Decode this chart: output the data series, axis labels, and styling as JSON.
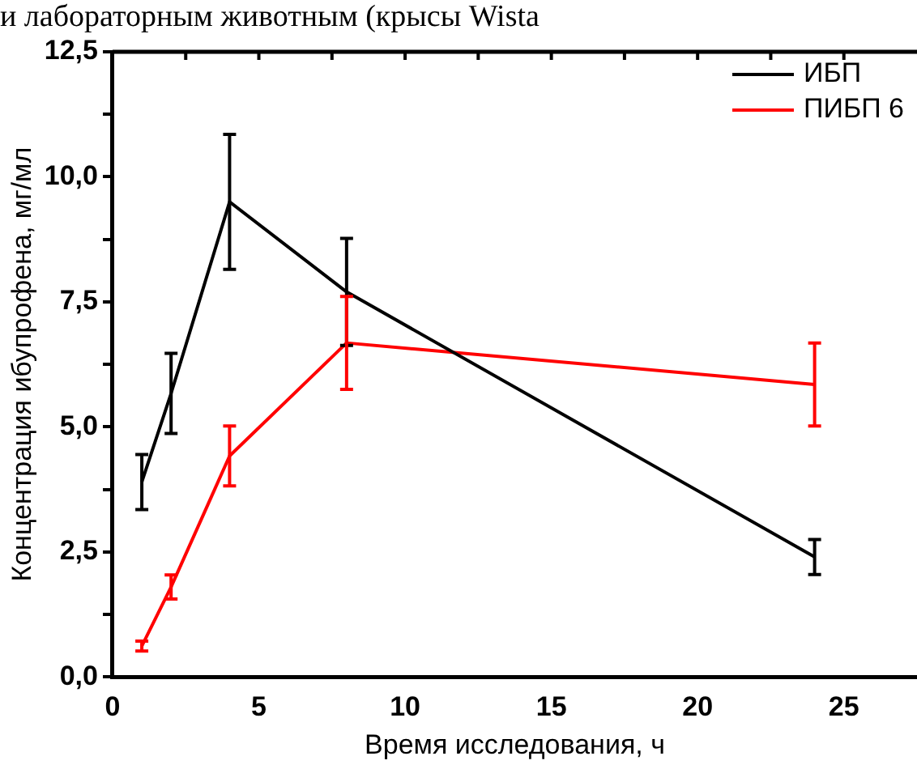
{
  "chart_data": {
    "type": "line",
    "xlabel": "Время исследования, ч",
    "ylabel": "Концентрация ибупрофена, мг/мл",
    "annotations": [
      "и лабораторным животным (крысы Wista"
    ],
    "x": [
      1,
      2,
      4,
      8,
      24
    ],
    "series": [
      {
        "name": "ИБП",
        "color": "#000000",
        "values": [
          3.9,
          5.67,
          9.5,
          7.7,
          2.4
        ],
        "errors": [
          0.55,
          0.8,
          1.35,
          1.07,
          0.35
        ]
      },
      {
        "name": "ПИБП 6",
        "color": "#ff0000",
        "values": [
          0.62,
          1.8,
          4.42,
          6.68,
          5.85
        ],
        "errors": [
          0.1,
          0.24,
          0.6,
          0.93,
          0.83
        ]
      }
    ],
    "xlim": [
      0,
      27.5
    ],
    "xticks": [
      0,
      {
        "value": 2.5,
        "label": null
      },
      5,
      {
        "value": 7.5,
        "label": null
      },
      10,
      {
        "value": 12.5,
        "label": null
      },
      15,
      {
        "value": 17.5,
        "label": null
      },
      20,
      {
        "value": 22.5,
        "label": null
      },
      25
    ],
    "ylim": [
      0,
      12.5
    ],
    "yticks": [
      {
        "value": 0,
        "label": "0,0"
      },
      {
        "value": 1.25,
        "label": null
      },
      {
        "value": 2.5,
        "label": "2,5"
      },
      {
        "value": 3.75,
        "label": null
      },
      {
        "value": 5,
        "label": "5,0"
      },
      {
        "value": 6.25,
        "label": null
      },
      {
        "value": 7.5,
        "label": "7,5"
      },
      {
        "value": 8.75,
        "label": null
      },
      {
        "value": 10,
        "label": "10,0"
      },
      {
        "value": 11.25,
        "label": null
      },
      {
        "value": 12.5,
        "label": "12,5"
      }
    ],
    "grid": false,
    "legend": "top right",
    "marker": "none",
    "line_style": "solid"
  }
}
